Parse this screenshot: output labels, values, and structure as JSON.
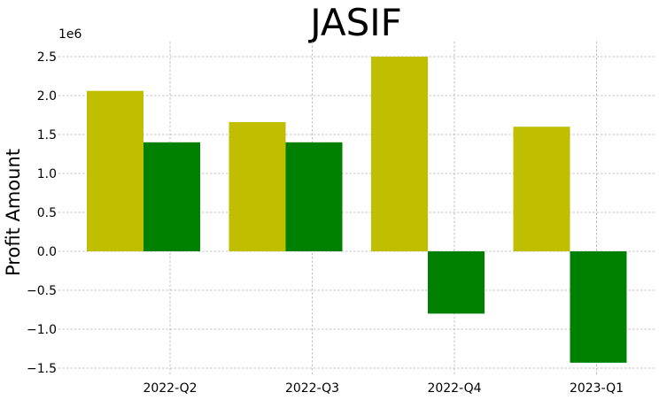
{
  "chart_data": {
    "type": "bar",
    "title": "JASIF",
    "xlabel": "",
    "ylabel": "Profit Amount",
    "y_offset_text": "1e6",
    "categories": [
      "2022-Q2",
      "2022-Q3",
      "2022-Q4",
      "2023-Q1"
    ],
    "series": [
      {
        "color": "#bfbf00",
        "values": [
          2060000,
          1660000,
          2500000,
          1600000
        ]
      },
      {
        "color": "#008000",
        "values": [
          1400000,
          1400000,
          -800000,
          -1430000
        ]
      }
    ],
    "ylim": [
      -1600000,
      2650000
    ],
    "yticks": [
      -1500000,
      -1000000,
      -500000,
      0,
      500000,
      1000000,
      1500000,
      2000000,
      2500000
    ],
    "ytick_labels": [
      "−1.5",
      "−1.0",
      "−0.5",
      "0.0",
      "0.5",
      "1.0",
      "1.5",
      "2.0",
      "2.5"
    ],
    "grid": true,
    "legend": false
  }
}
